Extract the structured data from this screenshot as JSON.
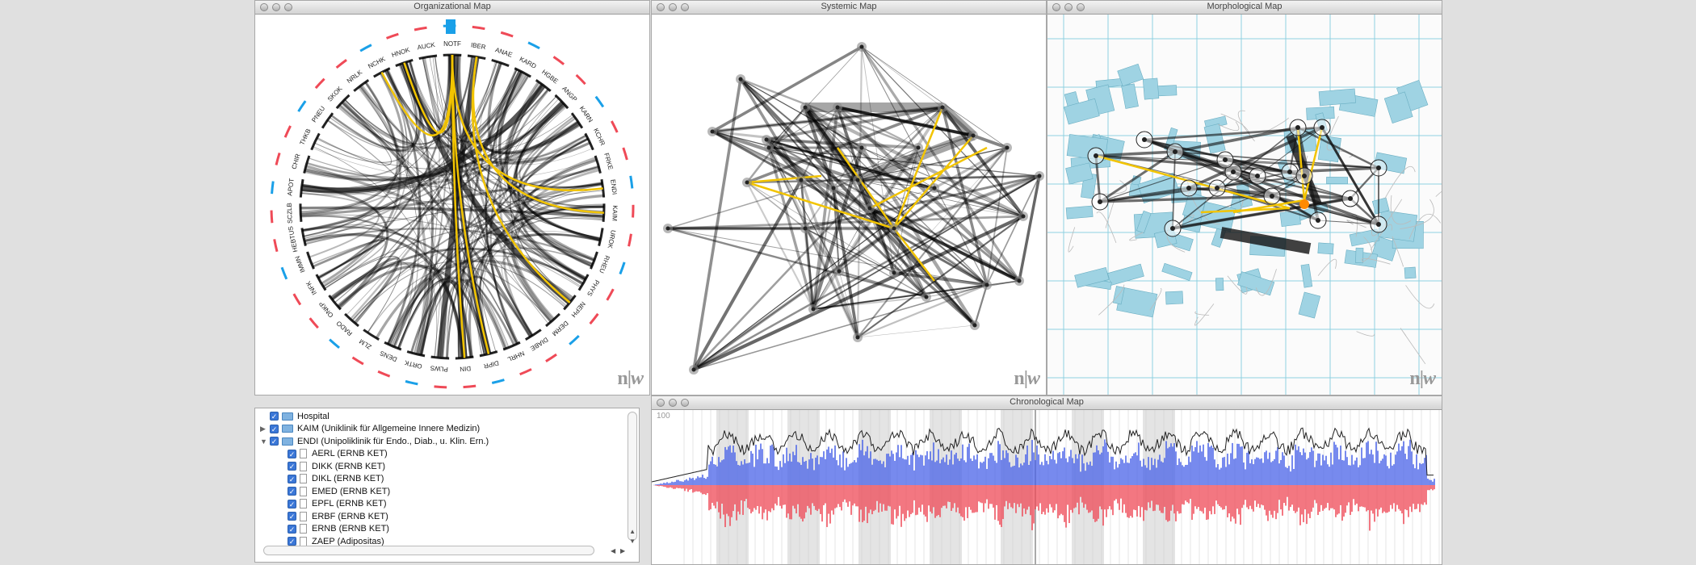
{
  "windows": {
    "organizational": {
      "title": "Organizational Map"
    },
    "systemic": {
      "title": "Systemic  Map"
    },
    "morphological": {
      "title": "Morphological Map"
    },
    "chronological": {
      "title": "Chronological Map"
    }
  },
  "logo": {
    "n": "n",
    "w": "w"
  },
  "chord_labels": [
    "NOTF",
    "IBER",
    "ANAE",
    "KARD",
    "HGBE",
    "ANGP",
    "KARN",
    "KCHR",
    "FRKE",
    "ENDI",
    "KAIM",
    "UROK",
    "RHEU",
    "PHYS",
    "NEPH",
    "DERM",
    "DIABE",
    "NHRL",
    "DIPR",
    "DIN",
    "PLWS",
    "ORTK",
    "DENS",
    "ZLM",
    "RADO",
    "ONKP",
    "INFK",
    "IMMN",
    "HEBTUS",
    "SCZLB",
    "APOT",
    "CHIR",
    "THKB",
    "PNEU",
    "SKOK",
    "NRLK",
    "NCHK",
    "HNOK",
    "AUCK"
  ],
  "chronological": {
    "y_axis_max_label": "100"
  },
  "tree": {
    "items": [
      {
        "label": "Hospital",
        "expanded": true,
        "type": "folder"
      },
      {
        "label": "KAIM  (Uniklinik für Allgemeine Innere Medizin)",
        "expanded": false,
        "type": "folder"
      },
      {
        "label": "ENDI  (Unipoliklinik für Endo., Diab., u. Klin. Ern.)",
        "expanded": true,
        "type": "folder"
      },
      {
        "label": "AERL  (ERNB KET)",
        "type": "doc"
      },
      {
        "label": "DIKK  (ERNB KET)",
        "type": "doc"
      },
      {
        "label": "DIKL  (ERNB KET)",
        "type": "doc"
      },
      {
        "label": "EMED  (ERNB KET)",
        "type": "doc"
      },
      {
        "label": "EPFL  (ERNB KET)",
        "type": "doc"
      },
      {
        "label": "ERBF  (ERNB KET)",
        "type": "doc"
      },
      {
        "label": "ERNB  (ERNB KET)",
        "type": "doc"
      },
      {
        "label": "ZAEP  (Adipositas)",
        "type": "doc"
      }
    ]
  },
  "colors": {
    "highlight": "#f2c400",
    "blue": "#4a63e8",
    "red": "#ef4a57",
    "accent_blue": "#1aa0e8"
  }
}
